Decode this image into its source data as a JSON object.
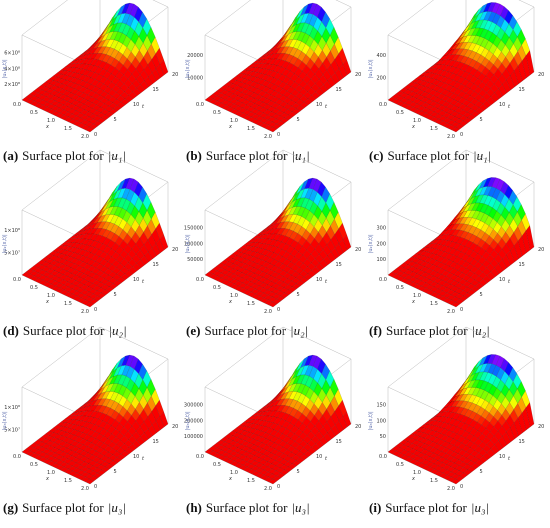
{
  "x_label": "x",
  "t_label": "t",
  "x_ticks": [
    "0.0",
    "0.5",
    "1.0",
    "1.5",
    "2.0"
  ],
  "t_ticks": [
    "0",
    "5",
    "10",
    "15",
    "20"
  ],
  "panels": [
    {
      "label": "(a)",
      "caption": "Surface plot for",
      "variable": "|u₁|",
      "z_label": "|u₁(x,t)|",
      "z_ticks": [
        "2×10⁸",
        "4×10⁸",
        "6×10⁸"
      ]
    },
    {
      "label": "(b)",
      "caption": "Surface plot for",
      "variable": "|u₁|",
      "z_label": "|u₁(x,t)|",
      "z_ticks": [
        "10000",
        "20000"
      ]
    },
    {
      "label": "(c)",
      "caption": "Surface plot for",
      "variable": "|u₁|",
      "z_label": "|u₁(x,t)|",
      "z_ticks": [
        "200",
        "400"
      ]
    },
    {
      "label": "(d)",
      "caption": "Surface plot for",
      "variable": "|u₂|",
      "z_label": "|u₂(x,t)|",
      "z_ticks": [
        "5×10⁷",
        "1×10⁸"
      ]
    },
    {
      "label": "(e)",
      "caption": "Surface plot for",
      "variable": "|u₂|",
      "z_label": "|u₂(x,t)|",
      "z_ticks": [
        "50000",
        "100000",
        "150000"
      ]
    },
    {
      "label": "(f)",
      "caption": "Surface plot for",
      "variable": "|u₂|",
      "z_label": "|u₂(x,t)|",
      "z_ticks": [
        "100",
        "200",
        "300"
      ]
    },
    {
      "label": "(g)",
      "caption": "Surface plot for",
      "variable": "|u₃|",
      "z_label": "|u₃(x,t)|",
      "z_ticks": [
        "5×10⁷",
        "1×10⁸"
      ]
    },
    {
      "label": "(h)",
      "caption": "Surface plot for",
      "variable": "|u₃|",
      "z_label": "|u₃(x,t)|",
      "z_ticks": [
        "100000",
        "200000",
        "300000"
      ]
    },
    {
      "label": "(i)",
      "caption": "Surface plot for",
      "variable": "|u₃|",
      "z_label": "|u₃(x,t)|",
      "z_ticks": [
        "50",
        "100",
        "150"
      ]
    }
  ]
}
